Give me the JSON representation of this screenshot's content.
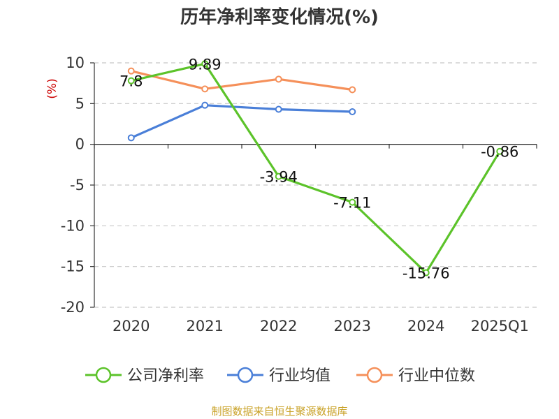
{
  "chart_data": {
    "type": "line",
    "title": "历年净利率变化情况(%)",
    "ylabel": "(%)",
    "xlabel": "",
    "categories": [
      "2020",
      "2021",
      "2022",
      "2023",
      "2024",
      "2025Q1"
    ],
    "ylim": [
      -20,
      10
    ],
    "yticks": [
      10,
      5,
      0,
      -5,
      -10,
      -15,
      -20
    ],
    "grid": true,
    "legend_position": "bottom",
    "series": [
      {
        "name": "公司净利率",
        "color": "#5cc32a",
        "values": [
          7.8,
          9.89,
          -3.94,
          -7.11,
          -15.76,
          -0.86
        ],
        "labels": [
          "7.8",
          "9.89",
          "-3.94",
          "-7.11",
          "-15.76",
          "-0.86"
        ]
      },
      {
        "name": "行业均值",
        "color": "#4a7fd8",
        "values": [
          0.8,
          4.8,
          4.3,
          4.0,
          null,
          null
        ]
      },
      {
        "name": "行业中位数",
        "color": "#f5905a",
        "values": [
          9.0,
          6.8,
          8.0,
          6.7,
          null,
          null
        ]
      }
    ]
  },
  "source": "制图数据来自恒生聚源数据库"
}
